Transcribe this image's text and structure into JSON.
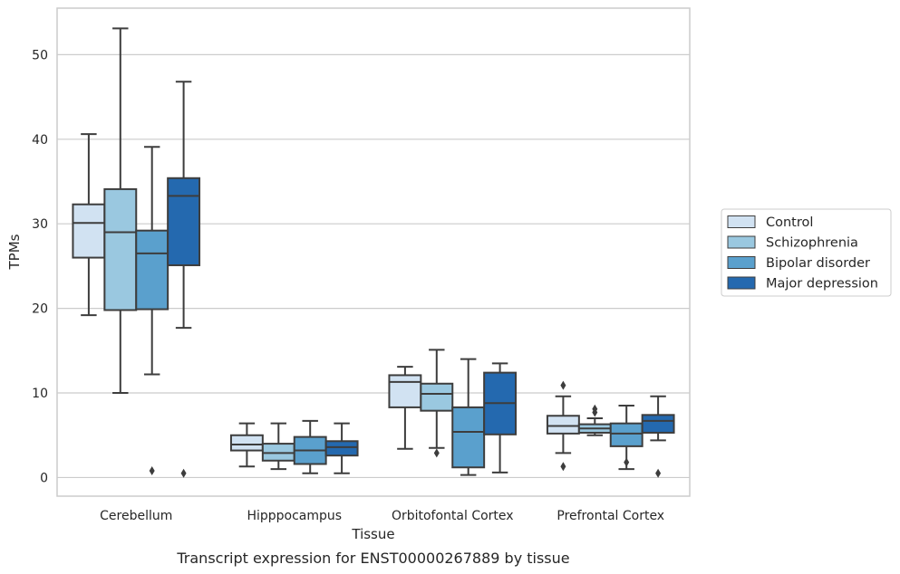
{
  "chart_data": {
    "type": "boxplot",
    "caption": "Transcript expression for ENST00000267889 by tissue",
    "xlabel": "Tissue",
    "ylabel": "TPMs",
    "ylim": [
      -2.2,
      55.5
    ],
    "yticks": [
      0,
      10,
      20,
      30,
      40,
      50
    ],
    "grid": true,
    "legend_position": "right",
    "categories": [
      "Cerebellum",
      "Hipppocampus",
      "Orbitofontal Cortex",
      "Prefrontal Cortex"
    ],
    "series": [
      {
        "name": "Control",
        "color": "#d1e2f2",
        "boxes": [
          {
            "whisker_low": 19.2,
            "q1": 26.0,
            "median": 30.1,
            "q3": 32.3,
            "whisker_high": 40.6,
            "outliers": []
          },
          {
            "whisker_low": 1.3,
            "q1": 3.2,
            "median": 3.9,
            "q3": 5.0,
            "whisker_high": 6.4,
            "outliers": []
          },
          {
            "whisker_low": 3.4,
            "q1": 8.3,
            "median": 11.3,
            "q3": 12.1,
            "whisker_high": 13.1,
            "outliers": []
          },
          {
            "whisker_low": 2.9,
            "q1": 5.2,
            "median": 6.1,
            "q3": 7.3,
            "whisker_high": 9.6,
            "outliers": [
              1.3,
              10.9
            ]
          }
        ]
      },
      {
        "name": "Schizophrenia",
        "color": "#9ac8e0",
        "boxes": [
          {
            "whisker_low": 10.0,
            "q1": 19.8,
            "median": 29.0,
            "q3": 34.1,
            "whisker_high": 53.1,
            "outliers": []
          },
          {
            "whisker_low": 1.0,
            "q1": 2.0,
            "median": 2.9,
            "q3": 4.0,
            "whisker_high": 6.4,
            "outliers": []
          },
          {
            "whisker_low": 3.5,
            "q1": 7.9,
            "median": 9.9,
            "q3": 11.1,
            "whisker_high": 15.1,
            "outliers": [
              2.9
            ]
          },
          {
            "whisker_low": 5.0,
            "q1": 5.3,
            "median": 5.8,
            "q3": 6.3,
            "whisker_high": 7.0,
            "outliers": [
              7.7,
              8.1
            ]
          }
        ]
      },
      {
        "name": "Bipolar disorder",
        "color": "#5aa0cd",
        "boxes": [
          {
            "whisker_low": 12.2,
            "q1": 19.9,
            "median": 26.5,
            "q3": 29.2,
            "whisker_high": 39.1,
            "outliers": [
              0.8
            ]
          },
          {
            "whisker_low": 0.5,
            "q1": 1.6,
            "median": 3.2,
            "q3": 4.8,
            "whisker_high": 6.7,
            "outliers": []
          },
          {
            "whisker_low": 0.3,
            "q1": 1.2,
            "median": 5.4,
            "q3": 8.3,
            "whisker_high": 14.0,
            "outliers": []
          },
          {
            "whisker_low": 1.0,
            "q1": 3.7,
            "median": 5.2,
            "q3": 6.4,
            "whisker_high": 8.5,
            "outliers": [
              1.8
            ]
          }
        ]
      },
      {
        "name": "Major depression",
        "color": "#2469af",
        "boxes": [
          {
            "whisker_low": 17.7,
            "q1": 25.1,
            "median": 33.3,
            "q3": 35.4,
            "whisker_high": 46.8,
            "outliers": [
              0.5
            ]
          },
          {
            "whisker_low": 0.5,
            "q1": 2.6,
            "median": 3.6,
            "q3": 4.3,
            "whisker_high": 6.4,
            "outliers": []
          },
          {
            "whisker_low": 0.6,
            "q1": 5.1,
            "median": 8.8,
            "q3": 12.4,
            "whisker_high": 13.5,
            "outliers": []
          },
          {
            "whisker_low": 4.4,
            "q1": 5.3,
            "median": 6.7,
            "q3": 7.4,
            "whisker_high": 9.6,
            "outliers": [
              0.5
            ]
          }
        ]
      }
    ]
  }
}
